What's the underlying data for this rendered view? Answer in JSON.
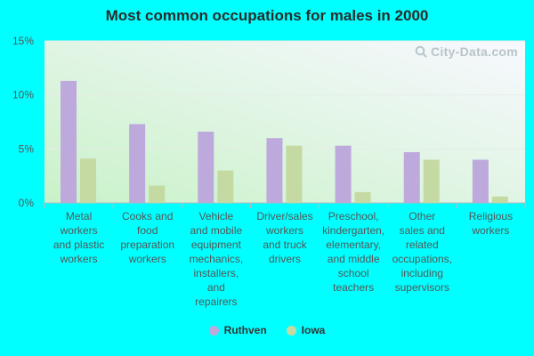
{
  "chart_data": {
    "type": "bar",
    "title": "Most common occupations for males in 2000",
    "xlabel": "",
    "ylabel": "",
    "ylim": [
      0,
      15
    ],
    "yticks": [
      0,
      5,
      10,
      15
    ],
    "ytick_labels": [
      "0%",
      "5%",
      "10%",
      "15%"
    ],
    "categories": [
      [
        "Metal",
        "workers",
        "and plastic",
        "workers"
      ],
      [
        "Cooks and",
        "food",
        "preparation",
        "workers"
      ],
      [
        "Vehicle",
        "and mobile",
        "equipment",
        "mechanics,",
        "installers,",
        "and",
        "repairers"
      ],
      [
        "Driver/sales",
        "workers",
        "and truck",
        "drivers"
      ],
      [
        "Preschool,",
        "kindergarten,",
        "elementary,",
        "and middle",
        "school",
        "teachers"
      ],
      [
        "Other",
        "sales and",
        "related",
        "occupations,",
        "including",
        "supervisors"
      ],
      [
        "Religious",
        "workers"
      ]
    ],
    "series": [
      {
        "name": "Ruthven",
        "color": "#bda9dc",
        "values": [
          11.3,
          7.3,
          6.6,
          6.0,
          5.3,
          4.7,
          4.0
        ]
      },
      {
        "name": "Iowa",
        "color": "#c5d9a3",
        "values": [
          4.1,
          1.6,
          3.0,
          5.3,
          1.0,
          4.0,
          0.6
        ]
      }
    ],
    "legend": "bottom-center",
    "watermark": "City-Data.com"
  },
  "colors": {
    "background": "#00FFFF",
    "plot_gradient_start": "#c9f2c9",
    "plot_gradient_end": "#f7f7ff",
    "axis": "#bbbbbb"
  }
}
